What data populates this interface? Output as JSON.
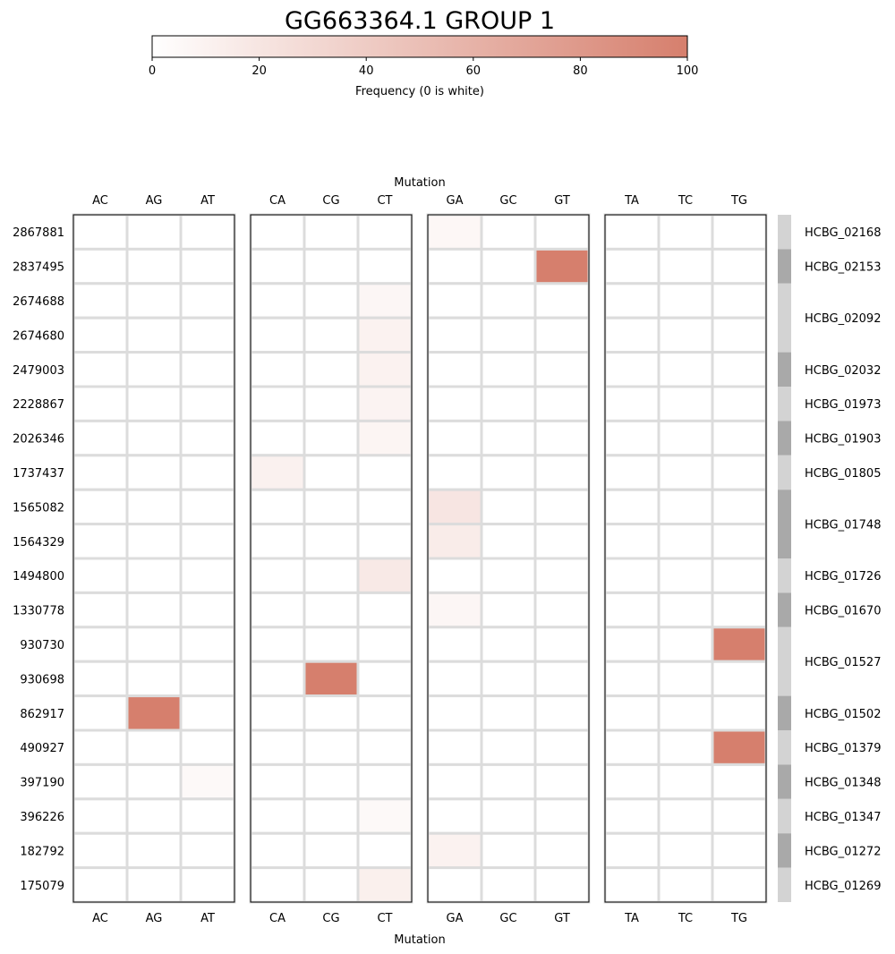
{
  "chart_data": {
    "type": "heatmap",
    "title": "GG663364.1 GROUP 1",
    "colorbar": {
      "label": "Frequency (0 is white)",
      "min": 0,
      "max": 100,
      "ticks": [
        0,
        20,
        40,
        60,
        80,
        100
      ],
      "color_low": "#ffffff",
      "color_high": "#d67f6d"
    },
    "xlabel": "Mutation",
    "panels": [
      {
        "columns": [
          "AC",
          "AG",
          "AT"
        ]
      },
      {
        "columns": [
          "CA",
          "CG",
          "CT"
        ]
      },
      {
        "columns": [
          "GA",
          "GC",
          "GT"
        ]
      },
      {
        "columns": [
          "TA",
          "TC",
          "TG"
        ]
      }
    ],
    "rows": [
      "2867881",
      "2837495",
      "2674688",
      "2674680",
      "2479003",
      "2228867",
      "2026346",
      "1737437",
      "1565082",
      "1564329",
      "1494800",
      "1330778",
      "930730",
      "930698",
      "862917",
      "490927",
      "397190",
      "396226",
      "182792",
      "175079"
    ],
    "cells": [
      {
        "row": "2867881",
        "mutation": "GA",
        "value": 6
      },
      {
        "row": "2837495",
        "mutation": "GT",
        "value": 100
      },
      {
        "row": "2674688",
        "mutation": "CT",
        "value": 7
      },
      {
        "row": "2674680",
        "mutation": "CT",
        "value": 10
      },
      {
        "row": "2479003",
        "mutation": "CT",
        "value": 10
      },
      {
        "row": "2228867",
        "mutation": "CT",
        "value": 9
      },
      {
        "row": "2026346",
        "mutation": "CT",
        "value": 8
      },
      {
        "row": "1737437",
        "mutation": "CA",
        "value": 11
      },
      {
        "row": "1565082",
        "mutation": "GA",
        "value": 20
      },
      {
        "row": "1564329",
        "mutation": "GA",
        "value": 15
      },
      {
        "row": "1494800",
        "mutation": "CT",
        "value": 17
      },
      {
        "row": "1330778",
        "mutation": "GA",
        "value": 7
      },
      {
        "row": "930730",
        "mutation": "TG",
        "value": 100
      },
      {
        "row": "930698",
        "mutation": "CG",
        "value": 100
      },
      {
        "row": "862917",
        "mutation": "AG",
        "value": 100
      },
      {
        "row": "490927",
        "mutation": "TG",
        "value": 100
      },
      {
        "row": "397190",
        "mutation": "AT",
        "value": 5
      },
      {
        "row": "396226",
        "mutation": "CT",
        "value": 5
      },
      {
        "row": "182792",
        "mutation": "GA",
        "value": 10
      },
      {
        "row": "175079",
        "mutation": "CT",
        "value": 12
      }
    ],
    "gene_groups": [
      {
        "label": "HCBG_02168",
        "rows": [
          "2867881"
        ],
        "shade": "#d3d3d3"
      },
      {
        "label": "HCBG_02153",
        "rows": [
          "2837495"
        ],
        "shade": "#a9a9a9"
      },
      {
        "label": "HCBG_02092",
        "rows": [
          "2674688",
          "2674680"
        ],
        "shade": "#d3d3d3"
      },
      {
        "label": "HCBG_02032",
        "rows": [
          "2479003"
        ],
        "shade": "#a9a9a9"
      },
      {
        "label": "HCBG_01973",
        "rows": [
          "2228867"
        ],
        "shade": "#d3d3d3"
      },
      {
        "label": "HCBG_01903",
        "rows": [
          "2026346"
        ],
        "shade": "#a9a9a9"
      },
      {
        "label": "HCBG_01805",
        "rows": [
          "1737437"
        ],
        "shade": "#d3d3d3"
      },
      {
        "label": "HCBG_01748",
        "rows": [
          "1565082",
          "1564329"
        ],
        "shade": "#a9a9a9"
      },
      {
        "label": "HCBG_01726",
        "rows": [
          "1494800"
        ],
        "shade": "#d3d3d3"
      },
      {
        "label": "HCBG_01670",
        "rows": [
          "1330778"
        ],
        "shade": "#a9a9a9"
      },
      {
        "label": "HCBG_01527",
        "rows": [
          "930730",
          "930698"
        ],
        "shade": "#d3d3d3"
      },
      {
        "label": "HCBG_01502",
        "rows": [
          "862917"
        ],
        "shade": "#a9a9a9"
      },
      {
        "label": "HCBG_01379",
        "rows": [
          "490927"
        ],
        "shade": "#d3d3d3"
      },
      {
        "label": "HCBG_01348",
        "rows": [
          "397190"
        ],
        "shade": "#a9a9a9"
      },
      {
        "label": "HCBG_01347",
        "rows": [
          "396226"
        ],
        "shade": "#d3d3d3"
      },
      {
        "label": "HCBG_01272",
        "rows": [
          "182792"
        ],
        "shade": "#a9a9a9"
      },
      {
        "label": "HCBG_01269",
        "rows": [
          "175079"
        ],
        "shade": "#d3d3d3"
      }
    ],
    "grid": true
  }
}
